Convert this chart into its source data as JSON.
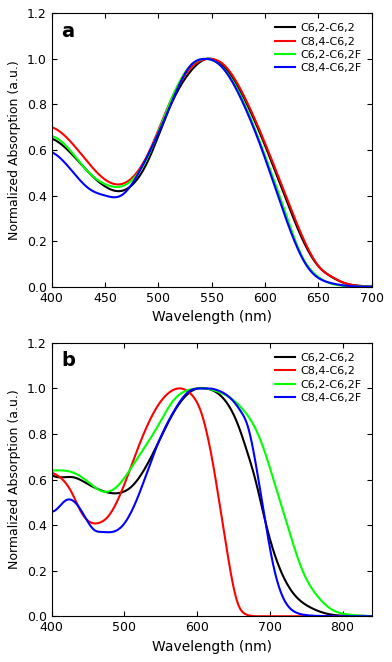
{
  "panel_a": {
    "label": "a",
    "xlim": [
      400,
      700
    ],
    "ylim": [
      0,
      1.2
    ],
    "xticks": [
      400,
      450,
      500,
      550,
      600,
      650,
      700
    ],
    "yticks": [
      0.0,
      0.2,
      0.4,
      0.6,
      0.8,
      1.0,
      1.2
    ],
    "xlabel": "Wavelength (nm)",
    "ylabel": "Normalized Absorption (a.u.)"
  },
  "panel_b": {
    "label": "b",
    "xlim": [
      400,
      840
    ],
    "ylim": [
      0,
      1.2
    ],
    "xticks": [
      400,
      500,
      600,
      700,
      800
    ],
    "yticks": [
      0.0,
      0.2,
      0.4,
      0.6,
      0.8,
      1.0,
      1.2
    ],
    "xlabel": "Wavelength (nm)",
    "ylabel": "Normalized Absorption (a.u.)"
  },
  "legend_labels": [
    "C6,2-C6,2",
    "C8,4-C6,2",
    "C6,2-C6,2F",
    "C8,4-C6,2F"
  ],
  "colors": [
    "black",
    "red",
    "lime",
    "blue"
  ],
  "linewidth": 1.5
}
